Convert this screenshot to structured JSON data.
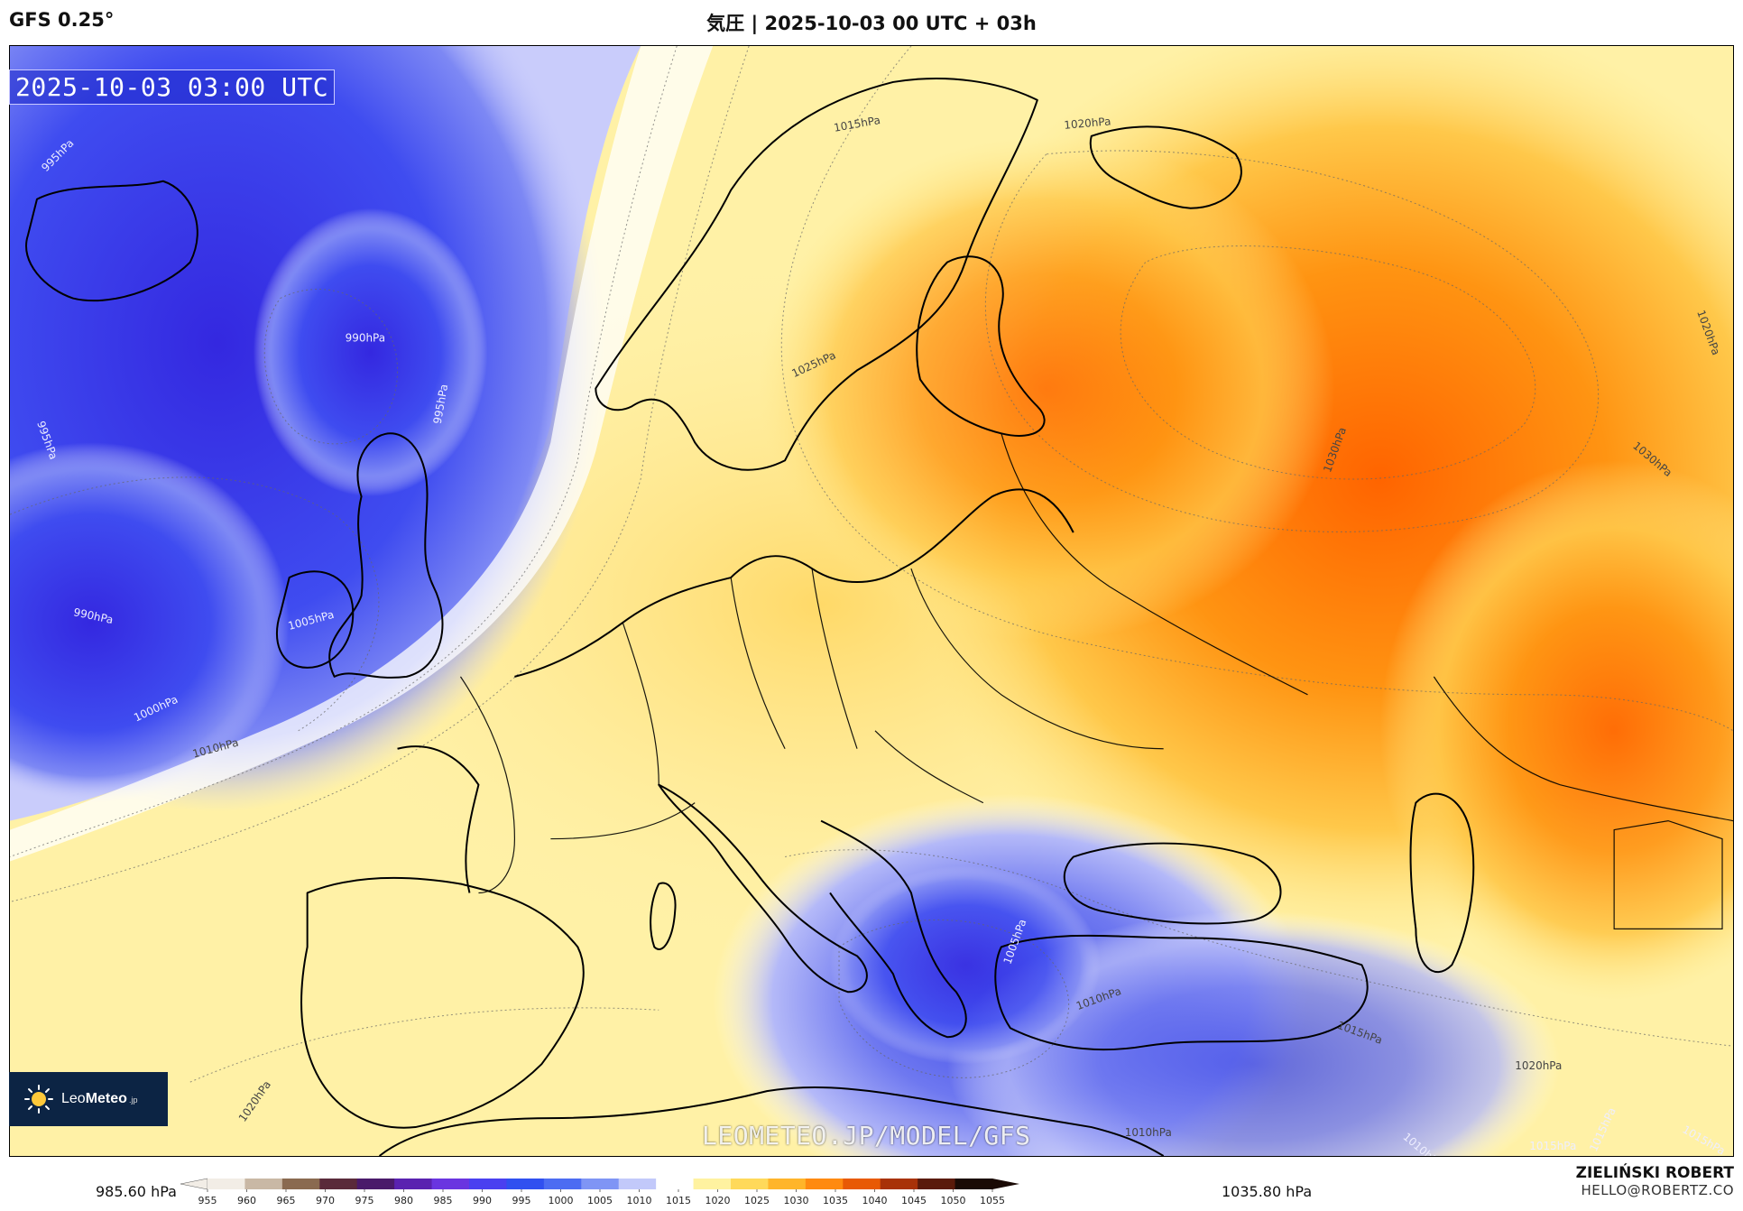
{
  "header": {
    "model": "GFS 0.25°",
    "title": "気圧 | 2025-10-03 00 UTC + 03h"
  },
  "map": {
    "valid_time": "2025-10-03 03:00 UTC",
    "watermark": "LEOMETEO.JP/MODEL/GFS",
    "isobar_labels": [
      "995hPa",
      "990hPa",
      "995hPa",
      "990hPa",
      "1005hPa",
      "995hPa",
      "1000hPa",
      "1010hPa",
      "1015hPa",
      "1020hPa",
      "1025hPa",
      "1030hPa",
      "1020hPa",
      "1030hPa",
      "1020hPa",
      "1010hPa",
      "1015hPa",
      "1020hPa",
      "1010hPa",
      "1010hPa",
      "1015hPa",
      "1015hPa",
      "1015hPa",
      "1005hPa"
    ]
  },
  "logo": {
    "name_regular": "Leo",
    "name_bold": "Meteo",
    "tld": ".jp"
  },
  "legend": {
    "min_label": "985.60 hPa",
    "max_label": "1035.80 hPa",
    "ticks": [
      "955",
      "960",
      "965",
      "970",
      "975",
      "980",
      "985",
      "990",
      "995",
      "1000",
      "1005",
      "1010",
      "1015",
      "1020",
      "1025",
      "1030",
      "1035",
      "1040",
      "1045",
      "1050",
      "1055"
    ]
  },
  "author": {
    "name": "ZIELIŃSKI ROBERT",
    "email": "HELLO@ROBERTZ.CO"
  },
  "colors": {
    "low": "#2b35e6",
    "neutral": "#ffffff",
    "high": "#ff6a00",
    "coast": "#000000"
  }
}
